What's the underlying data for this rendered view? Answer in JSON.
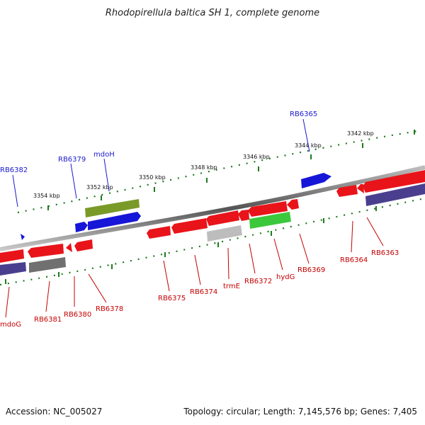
{
  "title": "Rhodopirellula baltica SH 1, complete genome",
  "footer": {
    "accession": "Accession: NC_005027",
    "summary": "Topology: circular; Length: 7,145,576 bp; Genes: 7,405"
  },
  "ruler_labels": [
    "3354 kbp",
    "3352 kbp",
    "3350 kbp",
    "3348 kbp",
    "3346 kbp",
    "3344 kbp",
    "3342 kbp"
  ],
  "colors": {
    "red": "#e8141a",
    "blue": "#1616d8",
    "olive": "#7a9a28",
    "green": "#3cc83c",
    "purple": "#4a3f8e",
    "gray": "#707070",
    "lightgray": "#bdbdbd",
    "label_blue": "#1a1acc",
    "label_red": "#c40000",
    "tick_green": "#1e7a1e"
  },
  "genes_top": [
    "RB6382",
    "RB6379",
    "mdoH",
    "RB6365"
  ],
  "genes_bottom": [
    "mdoG",
    "RB6381",
    "RB6380",
    "RB6378",
    "RB6375",
    "RB6374",
    "trmE",
    "RB6372",
    "hydG",
    "RB6369",
    "RB6364",
    "RB6363"
  ]
}
